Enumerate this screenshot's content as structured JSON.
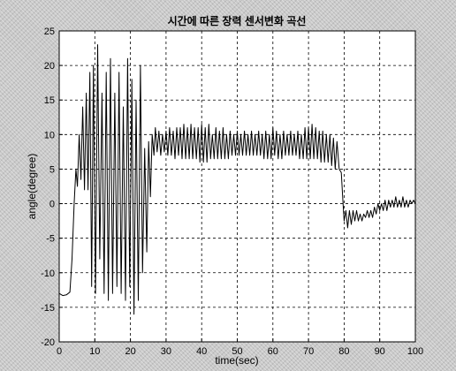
{
  "chart_data": {
    "type": "line",
    "title": "시간에 따른 장력 센서변화 곡선",
    "xlabel": "time(sec)",
    "ylabel": "angle(degree)",
    "xlim": [
      0,
      100
    ],
    "ylim": [
      -20,
      25
    ],
    "xticks": [
      0,
      10,
      20,
      30,
      40,
      50,
      60,
      70,
      80,
      90,
      100
    ],
    "yticks": [
      -20,
      -15,
      -10,
      -5,
      0,
      5,
      10,
      15,
      20,
      25
    ],
    "grid": true,
    "line_color": "#000000",
    "series": [
      {
        "values": [
          [
            0,
            -13
          ],
          [
            1,
            -13.3
          ],
          [
            2,
            -13.2
          ],
          [
            3,
            -12.8
          ],
          [
            3.6,
            -8
          ],
          [
            4.2,
            0
          ],
          [
            4.7,
            5
          ],
          [
            5.1,
            2.5
          ],
          [
            5.6,
            10
          ],
          [
            6.1,
            3.5
          ],
          [
            6.6,
            14
          ],
          [
            7.1,
            2
          ],
          [
            7.6,
            16
          ],
          [
            8.1,
            2
          ],
          [
            8.6,
            19
          ],
          [
            9.1,
            -12
          ],
          [
            9.6,
            20
          ],
          [
            10.2,
            -13
          ],
          [
            10.8,
            23
          ],
          [
            11.4,
            -8
          ],
          [
            12.0,
            16
          ],
          [
            12.6,
            -13
          ],
          [
            13.2,
            19
          ],
          [
            13.8,
            -14
          ],
          [
            14.4,
            21
          ],
          [
            15.0,
            -13
          ],
          [
            15.6,
            16
          ],
          [
            16.2,
            -12
          ],
          [
            16.8,
            19
          ],
          [
            17.4,
            -13
          ],
          [
            18.0,
            14
          ],
          [
            18.6,
            -14
          ],
          [
            19.2,
            21
          ],
          [
            19.8,
            -12
          ],
          [
            20.4,
            18
          ],
          [
            21.0,
            -16
          ],
          [
            21.6,
            15
          ],
          [
            22.2,
            -14
          ],
          [
            22.8,
            20
          ],
          [
            23.4,
            -10
          ],
          [
            24.0,
            8
          ],
          [
            24.6,
            -7
          ],
          [
            25.1,
            9
          ],
          [
            25.6,
            1
          ],
          [
            26.1,
            10
          ],
          [
            26.6,
            7
          ],
          [
            27.0,
            11
          ],
          [
            27.5,
            7.5
          ],
          [
            28.0,
            10.5
          ],
          [
            28.5,
            7
          ],
          [
            29.0,
            10
          ],
          [
            29.5,
            7.5
          ],
          [
            30.0,
            10.5
          ],
          [
            30.5,
            7
          ],
          [
            31.0,
            11
          ],
          [
            31.5,
            7
          ],
          [
            32.0,
            10.5
          ],
          [
            32.5,
            6.5
          ],
          [
            33.0,
            11
          ],
          [
            33.5,
            7
          ],
          [
            34.0,
            11
          ],
          [
            34.5,
            6.5
          ],
          [
            35.0,
            11.5
          ],
          [
            35.5,
            6.5
          ],
          [
            36.0,
            11
          ],
          [
            36.5,
            6.5
          ],
          [
            37.0,
            11.5
          ],
          [
            37.5,
            6.5
          ],
          [
            38.0,
            11
          ],
          [
            38.5,
            6.5
          ],
          [
            39.0,
            11
          ],
          [
            39.5,
            6
          ],
          [
            40.0,
            11.5
          ],
          [
            40.5,
            6
          ],
          [
            41.0,
            11
          ],
          [
            41.5,
            6
          ],
          [
            42.0,
            11.5
          ],
          [
            42.5,
            6.5
          ],
          [
            43.0,
            10
          ],
          [
            43.5,
            6.5
          ],
          [
            44.0,
            11
          ],
          [
            44.5,
            6.5
          ],
          [
            45.0,
            10.5
          ],
          [
            45.5,
            6.5
          ],
          [
            46.0,
            11
          ],
          [
            46.5,
            6.5
          ],
          [
            47.0,
            10
          ],
          [
            47.5,
            6.5
          ],
          [
            48.0,
            10.5
          ],
          [
            48.5,
            7
          ],
          [
            49.0,
            10
          ],
          [
            49.5,
            7
          ],
          [
            50.0,
            10.5
          ],
          [
            50.5,
            7
          ],
          [
            51.0,
            10
          ],
          [
            51.5,
            7
          ],
          [
            52.0,
            10.5
          ],
          [
            52.5,
            7
          ],
          [
            53.0,
            10
          ],
          [
            53.5,
            7
          ],
          [
            54.0,
            10.5
          ],
          [
            54.5,
            7
          ],
          [
            55.0,
            10
          ],
          [
            55.5,
            7
          ],
          [
            56.0,
            10.5
          ],
          [
            56.5,
            7
          ],
          [
            57.0,
            10
          ],
          [
            57.5,
            6.5
          ],
          [
            58.0,
            10.5
          ],
          [
            58.5,
            6.5
          ],
          [
            59.0,
            10
          ],
          [
            59.5,
            6.5
          ],
          [
            60.0,
            11
          ],
          [
            60.5,
            7
          ],
          [
            61.0,
            10.5
          ],
          [
            61.5,
            6.5
          ],
          [
            62.0,
            10
          ],
          [
            62.5,
            6.5
          ],
          [
            63.0,
            10.5
          ],
          [
            63.5,
            7
          ],
          [
            64.0,
            10
          ],
          [
            64.5,
            7
          ],
          [
            65.0,
            10.5
          ],
          [
            65.5,
            7
          ],
          [
            66.0,
            10
          ],
          [
            66.5,
            7
          ],
          [
            67.0,
            10.5
          ],
          [
            67.5,
            6.5
          ],
          [
            68.0,
            10
          ],
          [
            68.5,
            6.5
          ],
          [
            69.0,
            11
          ],
          [
            69.5,
            6.5
          ],
          [
            70.0,
            11
          ],
          [
            70.5,
            6.5
          ],
          [
            71.0,
            11.5
          ],
          [
            71.5,
            6.5
          ],
          [
            72.0,
            11
          ],
          [
            72.5,
            6.5
          ],
          [
            73.0,
            10.5
          ],
          [
            73.5,
            6
          ],
          [
            74.0,
            10.5
          ],
          [
            74.5,
            6
          ],
          [
            75.0,
            10
          ],
          [
            75.5,
            6
          ],
          [
            76.0,
            10
          ],
          [
            76.5,
            5.5
          ],
          [
            77.0,
            9.5
          ],
          [
            77.5,
            5
          ],
          [
            78.0,
            9
          ],
          [
            78.6,
            5
          ],
          [
            79.2,
            4.5
          ],
          [
            79.7,
            0
          ],
          [
            80.0,
            -2.5
          ],
          [
            80.5,
            -1
          ],
          [
            81.0,
            -3.5
          ],
          [
            81.5,
            -1
          ],
          [
            82.0,
            -3
          ],
          [
            82.5,
            -1
          ],
          [
            83.0,
            -2.5
          ],
          [
            83.5,
            -1
          ],
          [
            84.0,
            -2.5
          ],
          [
            84.5,
            -1.5
          ],
          [
            85.0,
            -2.5
          ],
          [
            85.5,
            -1.5
          ],
          [
            86.0,
            -2
          ],
          [
            86.5,
            -1
          ],
          [
            87.0,
            -2
          ],
          [
            87.5,
            -1
          ],
          [
            88.0,
            -2
          ],
          [
            88.5,
            -0.5
          ],
          [
            89.0,
            -1.5
          ],
          [
            89.5,
            0
          ],
          [
            90.0,
            -1
          ],
          [
            90.5,
            0
          ],
          [
            91.0,
            -1
          ],
          [
            91.5,
            0.5
          ],
          [
            92.0,
            -1
          ],
          [
            92.5,
            0.5
          ],
          [
            93.0,
            -0.5
          ],
          [
            93.5,
            0.5
          ],
          [
            94.0,
            -0.5
          ],
          [
            94.5,
            1
          ],
          [
            95.0,
            -0.5
          ],
          [
            95.5,
            0.5
          ],
          [
            96.0,
            -0.5
          ],
          [
            96.5,
            1
          ],
          [
            97.0,
            -0.5
          ],
          [
            97.5,
            0.5
          ],
          [
            98.0,
            -0.5
          ],
          [
            98.5,
            0.5
          ],
          [
            99.0,
            0
          ],
          [
            99.5,
            0.5
          ],
          [
            100.0,
            0
          ]
        ]
      }
    ]
  }
}
